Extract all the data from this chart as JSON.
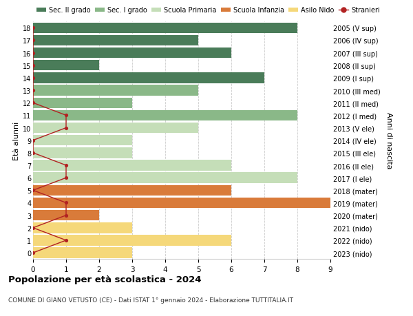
{
  "ages": [
    18,
    17,
    16,
    15,
    14,
    13,
    12,
    11,
    10,
    9,
    8,
    7,
    6,
    5,
    4,
    3,
    2,
    1,
    0
  ],
  "right_labels": [
    "2005 (V sup)",
    "2006 (IV sup)",
    "2007 (III sup)",
    "2008 (II sup)",
    "2009 (I sup)",
    "2010 (III med)",
    "2011 (II med)",
    "2012 (I med)",
    "2013 (V ele)",
    "2014 (IV ele)",
    "2015 (III ele)",
    "2016 (II ele)",
    "2017 (I ele)",
    "2018 (mater)",
    "2019 (mater)",
    "2020 (mater)",
    "2021 (nido)",
    "2022 (nido)",
    "2023 (nido)"
  ],
  "bar_values": [
    8,
    5,
    6,
    2,
    7,
    5,
    3,
    8,
    5,
    3,
    3,
    6,
    8,
    6,
    9,
    2,
    3,
    6,
    3
  ],
  "bar_colors": [
    "#4a7c59",
    "#4a7c59",
    "#4a7c59",
    "#4a7c59",
    "#4a7c59",
    "#8ab888",
    "#8ab888",
    "#8ab888",
    "#c5deb8",
    "#c5deb8",
    "#c5deb8",
    "#c5deb8",
    "#c5deb8",
    "#d97b3a",
    "#d97b3a",
    "#d97b3a",
    "#f5d87a",
    "#f5d87a",
    "#f5d87a"
  ],
  "stranieri_values": [
    0,
    0,
    0,
    0,
    0,
    0,
    0,
    1,
    1,
    0,
    0,
    1,
    1,
    0,
    1,
    1,
    0,
    1,
    0
  ],
  "title": "Popolazione per età scolastica - 2024",
  "subtitle": "COMUNE DI GIANO VETUSTO (CE) - Dati ISTAT 1° gennaio 2024 - Elaborazione TUTTITALIA.IT",
  "ylabel_left": "Età alunni",
  "ylabel_right": "Anni di nascita",
  "legend_labels": [
    "Sec. II grado",
    "Sec. I grado",
    "Scuola Primaria",
    "Scuola Infanzia",
    "Asilo Nido",
    "Stranieri"
  ],
  "legend_colors": [
    "#4a7c59",
    "#8ab888",
    "#c5deb8",
    "#d97b3a",
    "#f5d87a",
    "#b22222"
  ],
  "color_stranieri": "#b22222",
  "xlim": [
    0,
    9
  ],
  "grid_color": "#cccccc"
}
